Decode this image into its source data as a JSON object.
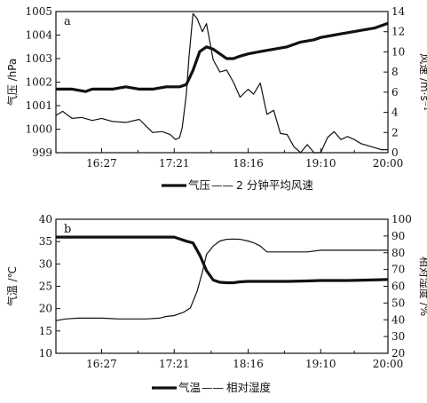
{
  "chart_data": [
    {
      "type": "line",
      "panel_label": "a",
      "x_ticks": [
        "16:27",
        "17:21",
        "18:16",
        "19:10",
        "20:00"
      ],
      "xlim": [
        "15:53",
        "20:00"
      ],
      "left_axis": {
        "label": "气压 /hPa",
        "ylim": [
          999,
          1005
        ],
        "ticks": [
          "999",
          "1000",
          "1001",
          "1002",
          "1003",
          "1004",
          "1005"
        ]
      },
      "right_axis": {
        "label": "风速 /m·s⁻¹",
        "ylim": [
          0,
          14
        ],
        "ticks": [
          "0",
          "2",
          "4",
          "6",
          "8",
          "10",
          "12",
          "14"
        ]
      },
      "legend": {
        "label_1": "气压",
        "separator": "——",
        "label_2": "2 分钟平均风速",
        "placement": "bottom"
      },
      "series": [
        {
          "name": "气压",
          "axis": "left",
          "style": "thick",
          "x": [
            "15:53",
            "16:05",
            "16:15",
            "16:20",
            "16:27",
            "16:35",
            "16:45",
            "16:55",
            "17:05",
            "17:15",
            "17:25",
            "17:30",
            "17:35",
            "17:40",
            "17:45",
            "17:50",
            "17:55",
            "18:00",
            "18:05",
            "18:10",
            "18:16",
            "18:25",
            "18:35",
            "18:45",
            "18:55",
            "19:05",
            "19:10",
            "19:20",
            "19:30",
            "19:40",
            "19:50",
            "20:00"
          ],
          "values": [
            1001.7,
            1001.7,
            1001.6,
            1001.7,
            1001.7,
            1001.7,
            1001.8,
            1001.7,
            1001.7,
            1001.8,
            1001.8,
            1001.9,
            1002.5,
            1003.3,
            1003.5,
            1003.4,
            1003.2,
            1003.0,
            1003.0,
            1003.1,
            1003.2,
            1003.3,
            1003.4,
            1003.5,
            1003.7,
            1003.8,
            1003.9,
            1004.0,
            1004.1,
            1004.2,
            1004.3,
            1004.5
          ]
        },
        {
          "name": "2 分钟平均风速",
          "axis": "right",
          "style": "thin",
          "x": [
            "15:53",
            "15:58",
            "16:05",
            "16:12",
            "16:20",
            "16:27",
            "16:35",
            "16:45",
            "16:55",
            "17:05",
            "17:12",
            "17:18",
            "17:22",
            "17:25",
            "17:27",
            "17:30",
            "17:32",
            "17:35",
            "17:38",
            "17:42",
            "17:45",
            "17:50",
            "17:55",
            "18:00",
            "18:05",
            "18:10",
            "18:16",
            "18:20",
            "18:25",
            "18:30",
            "18:35",
            "18:40",
            "18:45",
            "18:50",
            "18:55",
            "19:00",
            "19:05",
            "19:10",
            "19:15",
            "19:20",
            "19:25",
            "19:30",
            "19:35",
            "19:40",
            "19:50",
            "19:55",
            "20:00"
          ],
          "values": [
            3.7,
            4.1,
            3.4,
            3.5,
            3.2,
            3.4,
            3.1,
            3.0,
            3.3,
            2.0,
            2.1,
            1.8,
            1.3,
            1.5,
            2.5,
            5.8,
            9.5,
            13.8,
            13.3,
            12.0,
            12.8,
            9.2,
            8.0,
            8.2,
            7.0,
            5.5,
            6.3,
            5.8,
            6.9,
            3.8,
            4.2,
            1.9,
            1.8,
            0.6,
            0.0,
            0.8,
            0.0,
            0.0,
            1.5,
            2.1,
            1.3,
            1.6,
            1.3,
            0.9,
            0.5,
            0.3,
            0.3
          ]
        }
      ]
    },
    {
      "type": "line",
      "panel_label": "b",
      "x_ticks": [
        "16:27",
        "17:21",
        "18:16",
        "19:10",
        "20:00"
      ],
      "xlim": [
        "15:53",
        "20:00"
      ],
      "left_axis": {
        "label": "气温 /℃",
        "ylim": [
          10,
          40
        ],
        "ticks": [
          "10",
          "15",
          "20",
          "25",
          "30",
          "35",
          "40"
        ]
      },
      "right_axis": {
        "label": "相对湿度 /%",
        "ylim": [
          20,
          100
        ],
        "ticks": [
          "20",
          "30",
          "40",
          "50",
          "60",
          "70",
          "80",
          "90",
          "100"
        ]
      },
      "legend": {
        "label_1": "气温",
        "separator": "——",
        "label_2": "相对湿度",
        "placement": "bottom"
      },
      "series": [
        {
          "name": "气温",
          "axis": "left",
          "style": "thick",
          "x": [
            "15:53",
            "16:10",
            "16:27",
            "16:45",
            "17:00",
            "17:15",
            "17:21",
            "17:25",
            "17:30",
            "17:35",
            "17:40",
            "17:45",
            "17:50",
            "17:55",
            "18:00",
            "18:05",
            "18:10",
            "18:16",
            "18:30",
            "18:45",
            "19:00",
            "19:10",
            "19:30",
            "19:45",
            "20:00"
          ],
          "values": [
            36.0,
            36.0,
            36.0,
            36.0,
            36.0,
            36.0,
            36.0,
            35.6,
            35.1,
            34.7,
            32.0,
            28.5,
            26.4,
            25.9,
            25.8,
            25.8,
            26.0,
            26.1,
            26.1,
            26.1,
            26.2,
            26.3,
            26.3,
            26.4,
            26.5
          ]
        },
        {
          "name": "相对湿度",
          "axis": "right",
          "style": "thin",
          "x": [
            "15:53",
            "16:00",
            "16:10",
            "16:20",
            "16:27",
            "16:40",
            "16:50",
            "17:00",
            "17:10",
            "17:15",
            "17:21",
            "17:28",
            "17:33",
            "17:38",
            "17:42",
            "17:45",
            "17:50",
            "17:55",
            "18:00",
            "18:05",
            "18:10",
            "18:16",
            "18:20",
            "18:25",
            "18:30",
            "18:40",
            "18:50",
            "19:00",
            "19:10",
            "19:30",
            "19:45",
            "20:00"
          ],
          "values": [
            39.5,
            40.5,
            41.0,
            41.0,
            41.0,
            40.5,
            40.5,
            40.5,
            41.0,
            42.0,
            42.5,
            44.5,
            47.0,
            57.0,
            68.5,
            79.0,
            84.0,
            87.0,
            88.0,
            88.2,
            88.0,
            87.0,
            86.0,
            84.0,
            80.5,
            80.5,
            80.5,
            80.5,
            81.5,
            81.5,
            81.5,
            81.5
          ]
        }
      ]
    }
  ]
}
